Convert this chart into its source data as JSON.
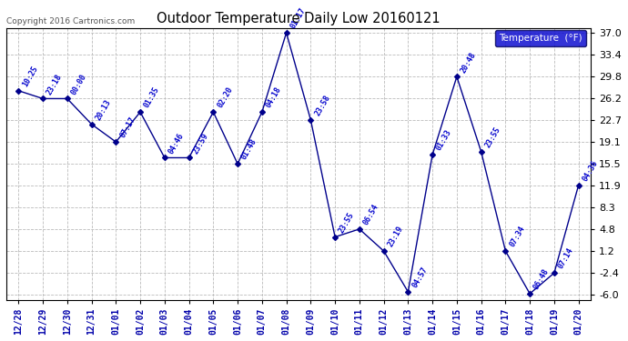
{
  "title": "Outdoor Temperature Daily Low 20160121",
  "copyright": "Copyright 2016 Cartronics.com",
  "legend_label": "Temperature  (°F)",
  "x_labels": [
    "12/28",
    "12/29",
    "12/30",
    "12/31",
    "01/01",
    "01/02",
    "01/03",
    "01/04",
    "01/05",
    "01/06",
    "01/07",
    "01/08",
    "01/09",
    "01/10",
    "01/11",
    "01/12",
    "01/13",
    "01/14",
    "01/15",
    "01/16",
    "01/17",
    "01/18",
    "01/19",
    "01/20"
  ],
  "y_values": [
    27.5,
    26.2,
    26.2,
    22.0,
    19.1,
    24.0,
    16.5,
    16.5,
    24.0,
    15.5,
    24.0,
    37.0,
    22.7,
    3.5,
    4.8,
    1.2,
    -5.5,
    17.0,
    29.8,
    17.5,
    1.2,
    -5.8,
    -2.4,
    12.0
  ],
  "point_labels": [
    "10:25",
    "23:18",
    "00:00",
    "20:13",
    "07:17",
    "01:35",
    "04:46",
    "23:59",
    "02:20",
    "01:48",
    "04:18",
    "01:17",
    "23:58",
    "23:55",
    "06:54",
    "23:19",
    "04:57",
    "01:33",
    "20:48",
    "23:55",
    "07:34",
    "06:48",
    "07:14",
    "04:36"
  ],
  "line_color": "#00008B",
  "marker_color": "#00008B",
  "label_color": "#0000CD",
  "background_color": "#ffffff",
  "grid_color": "#bbbbbb",
  "title_color": "#000000",
  "yticks": [
    37.0,
    33.4,
    29.8,
    26.2,
    22.7,
    19.1,
    15.5,
    11.9,
    8.3,
    4.8,
    1.2,
    -2.4,
    -6.0
  ],
  "legend_bg": "#0000CD",
  "legend_text_color": "#ffffff",
  "figsize": [
    6.9,
    3.75
  ],
  "dpi": 100
}
